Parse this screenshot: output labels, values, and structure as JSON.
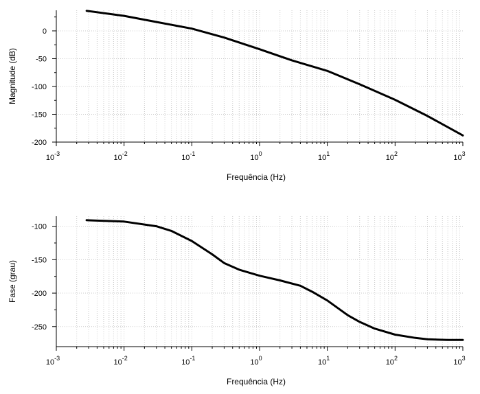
{
  "chart_data": [
    {
      "type": "line",
      "xlabel": "Frequência (Hz)",
      "ylabel": "Magnitude (dB)",
      "xscale": "log",
      "xlim": [
        0.001,
        1000
      ],
      "ylim": [
        -200,
        37
      ],
      "x_ticks": [
        {
          "mantissa": "10",
          "exp": "-3"
        },
        {
          "mantissa": "10",
          "exp": "-2"
        },
        {
          "mantissa": "10",
          "exp": "-1"
        },
        {
          "mantissa": "10",
          "exp": "0"
        },
        {
          "mantissa": "10",
          "exp": "1"
        },
        {
          "mantissa": "10",
          "exp": "2"
        },
        {
          "mantissa": "10",
          "exp": "3"
        }
      ],
      "y_ticks": [
        "0",
        "-50",
        "-100",
        "-150",
        "-200"
      ],
      "grid": true,
      "series": [
        {
          "color": "#000000",
          "x": [
            0.0028,
            0.01,
            0.03,
            0.1,
            0.3,
            1,
            3,
            10,
            30,
            100,
            300,
            1000
          ],
          "y": [
            36,
            27,
            16,
            4,
            -12,
            -33,
            -53,
            -72,
            -96,
            -124,
            -153,
            -188
          ]
        }
      ]
    },
    {
      "type": "line",
      "xlabel": "Frequência (Hz)",
      "ylabel": "Fase (grau)",
      "xscale": "log",
      "xlim": [
        0.001,
        1000
      ],
      "ylim": [
        -280,
        -85
      ],
      "x_ticks": [
        {
          "mantissa": "10",
          "exp": "-3"
        },
        {
          "mantissa": "10",
          "exp": "-2"
        },
        {
          "mantissa": "10",
          "exp": "-1"
        },
        {
          "mantissa": "10",
          "exp": "0"
        },
        {
          "mantissa": "10",
          "exp": "1"
        },
        {
          "mantissa": "10",
          "exp": "2"
        },
        {
          "mantissa": "10",
          "exp": "3"
        }
      ],
      "y_ticks": [
        "-100",
        "-150",
        "-200",
        "-250"
      ],
      "grid": true,
      "series": [
        {
          "color": "#000000",
          "x": [
            0.0028,
            0.01,
            0.03,
            0.05,
            0.1,
            0.2,
            0.3,
            0.5,
            1,
            2,
            4,
            6,
            10,
            20,
            30,
            50,
            100,
            200,
            300,
            600,
            1000
          ],
          "y": [
            -91,
            -93,
            -100,
            -107,
            -122,
            -142,
            -155,
            -165,
            -174,
            -181,
            -189,
            -198,
            -211,
            -233,
            -243,
            -253,
            -262,
            -267,
            -269,
            -270,
            -270
          ]
        }
      ]
    }
  ]
}
